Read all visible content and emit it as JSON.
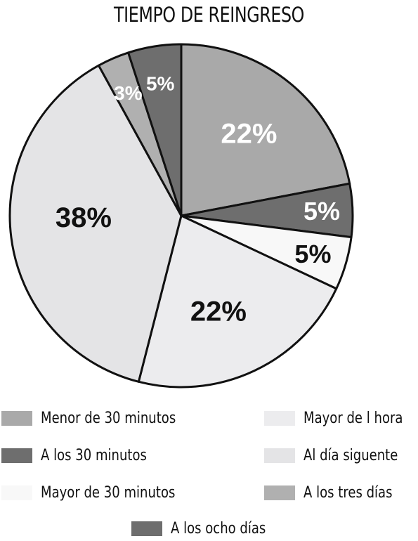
{
  "chart_data": {
    "type": "pie",
    "title": "TIEMPO DE REINGRESO",
    "slices": [
      {
        "name": "Menor de 30 minutos",
        "value": 22,
        "label": "22%",
        "color": "#a9a9a9",
        "label_color": "#ffffff"
      },
      {
        "name": "A los 30 minutos",
        "value": 5,
        "label": "5%",
        "color": "#6e6e6e",
        "label_color": "#ffffff"
      },
      {
        "name": "Mayor de 30 minutos",
        "value": 5,
        "label": "5%",
        "color": "#f8f8f8",
        "label_color": "#111111"
      },
      {
        "name": "Mayor de 1 hora",
        "value": 22,
        "label": "22%",
        "color": "#ececee",
        "label_color": "#111111"
      },
      {
        "name": "Al día siguente",
        "value": 38,
        "label": "38%",
        "color": "#e4e4e6",
        "label_color": "#111111"
      },
      {
        "name": "A los tres días",
        "value": 3,
        "label": "3%",
        "color": "#b0b0b0",
        "label_color": "#ffffff"
      },
      {
        "name": "A los ocho días",
        "value": 5,
        "label": "5%",
        "color": "#6e6e6e",
        "label_color": "#ffffff"
      }
    ],
    "legend": [
      {
        "label": "Menor de 30 minutos",
        "color": "#a9a9a9"
      },
      {
        "label": "A los 30 minutos",
        "color": "#6e6e6e"
      },
      {
        "label": "Mayor de 30 minutos",
        "color": "#f8f8f8"
      },
      {
        "label": "Mayor de l hora",
        "color": "#ececee"
      },
      {
        "label": "Al día siguente",
        "color": "#e4e4e6"
      },
      {
        "label": "A los tres días",
        "color": "#b0b0b0"
      },
      {
        "label": "A los ocho días",
        "color": "#6e6e6e"
      }
    ],
    "legend_placement": "bottom"
  }
}
